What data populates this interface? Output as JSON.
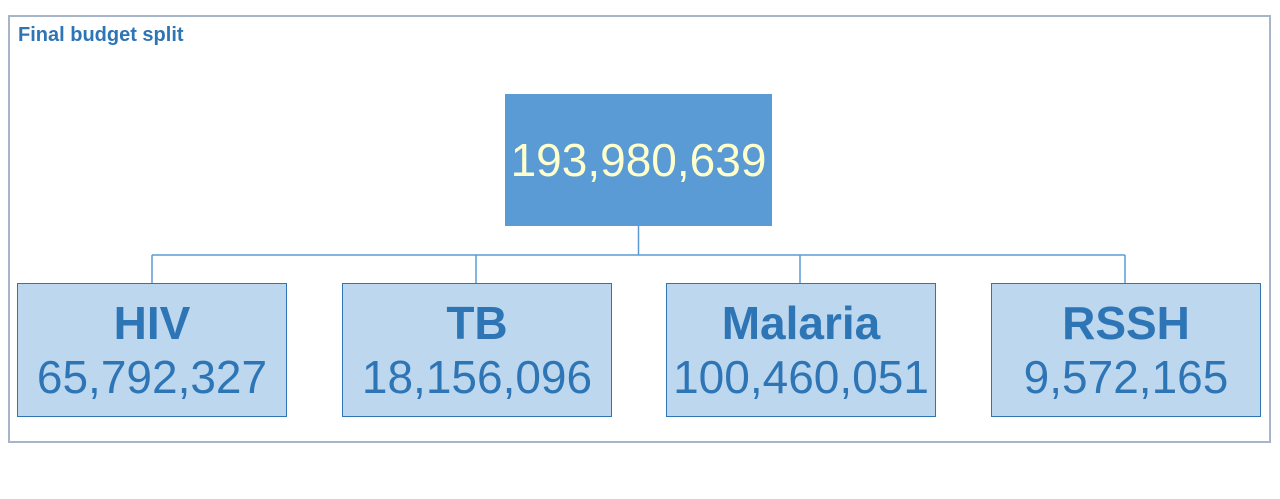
{
  "diagram": {
    "title": "Final budget split",
    "root": {
      "value": "193,980,639"
    },
    "children": [
      {
        "label": "HIV",
        "value": "65,792,327"
      },
      {
        "label": "TB",
        "value": "18,156,096"
      },
      {
        "label": "Malaria",
        "value": "100,460,051"
      },
      {
        "label": "RSSH",
        "value": "9,572,165"
      }
    ],
    "colors": {
      "root_fill": "#5b9bd5",
      "root_text": "#ffffcc",
      "child_fill": "#bdd7ee",
      "child_text": "#2e75b6",
      "connector": "#5b9bd5",
      "frame_border": "#a6b6c8"
    }
  }
}
